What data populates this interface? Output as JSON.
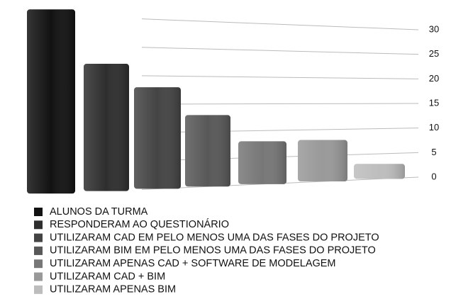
{
  "chart_data": {
    "type": "bar",
    "categories": [
      "ALUNOS DA TURMA",
      "RESPONDERAM AO QUESTIONÁRIO",
      "UTILIZARAM CAD EM PELO MENOS UMA DAS FASES DO PROJETO",
      "UTILIZARAM BIM EM PELO MENOS UMA DAS FASES DO PROJETO",
      "UTILIZARAM APENAS CAD + SOFTWARE DE MODELAGEM",
      "UTILIZARAM CAD + BIM",
      "UTILIZARAM APENAS BIM"
    ],
    "values": [
      31,
      22,
      18,
      13,
      8,
      8,
      3
    ],
    "colors": [
      "#121212",
      "#2e2e2e",
      "#444444",
      "#585858",
      "#777777",
      "#999999",
      "#bdbdbd"
    ],
    "ylim": [
      0,
      30
    ],
    "yticks": [
      0,
      5,
      10,
      15,
      20,
      25,
      30
    ],
    "grid": true
  }
}
